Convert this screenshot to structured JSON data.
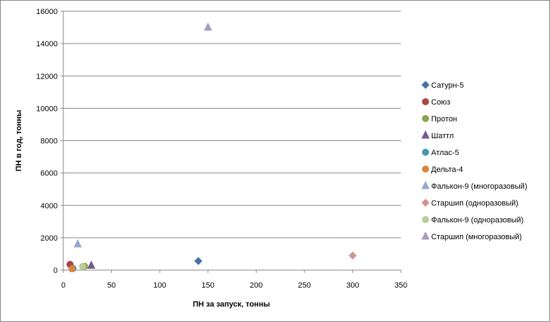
{
  "chart_data": {
    "type": "scatter",
    "title": "",
    "xlabel": "ПН за запуск, тонны",
    "ylabel": "ПН в год, тонны",
    "xlim": [
      0,
      350
    ],
    "ylim": [
      0,
      16000
    ],
    "x_ticks": [
      0,
      50,
      100,
      150,
      200,
      250,
      300,
      350
    ],
    "y_ticks": [
      0,
      2000,
      4000,
      6000,
      8000,
      10000,
      12000,
      14000,
      16000
    ],
    "grid": "horizontal major gridlines",
    "legend_position": "right",
    "series": [
      {
        "name": "Сатурн-5",
        "marker": "diamond",
        "color": "#4572A7",
        "points": [
          {
            "x": 140,
            "y": 560
          }
        ]
      },
      {
        "name": "Союз",
        "marker": "circle",
        "color": "#AA4643",
        "points": [
          {
            "x": 7,
            "y": 350
          }
        ]
      },
      {
        "name": "Протон",
        "marker": "circle",
        "color": "#89A54E",
        "points": [
          {
            "x": 22,
            "y": 240
          }
        ]
      },
      {
        "name": "Шаттл",
        "marker": "triangle",
        "color": "#71588F",
        "points": [
          {
            "x": 29,
            "y": 280
          }
        ]
      },
      {
        "name": "Атлас-5",
        "marker": "circle",
        "color": "#4198AF",
        "points": [
          {
            "x": 10,
            "y": 100
          }
        ]
      },
      {
        "name": "Дельта-4",
        "marker": "circle",
        "color": "#DB843D",
        "points": [
          {
            "x": 9,
            "y": 80
          }
        ]
      },
      {
        "name": "Фалькон-9 (многоразовый)",
        "marker": "triangle",
        "color": "#93A9CF",
        "points": [
          {
            "x": 15,
            "y": 1600
          }
        ]
      },
      {
        "name": "Старшип (одноразовый)",
        "marker": "diamond",
        "color": "#D19392",
        "points": [
          {
            "x": 300,
            "y": 900
          }
        ]
      },
      {
        "name": "Фалькон-9 (одноразовый)",
        "marker": "circle",
        "color": "#B9CD96",
        "points": [
          {
            "x": 20,
            "y": 220
          }
        ]
      },
      {
        "name": "Старшип (многоразовый)",
        "marker": "triangle",
        "color": "#A99BBD",
        "points": [
          {
            "x": 150,
            "y": 15000
          }
        ]
      }
    ]
  }
}
